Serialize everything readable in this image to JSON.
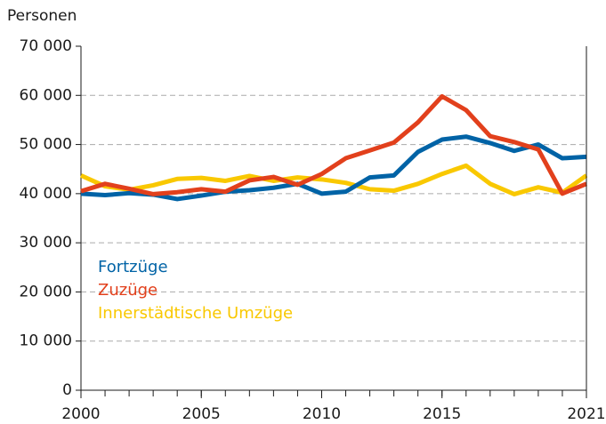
{
  "chart_data": {
    "type": "line",
    "ylabel": "Personen",
    "x": [
      2000,
      2001,
      2002,
      2003,
      2004,
      2005,
      2006,
      2007,
      2008,
      2009,
      2010,
      2011,
      2012,
      2013,
      2014,
      2015,
      2016,
      2017,
      2018,
      2019,
      2020,
      2021
    ],
    "xlim": [
      2000,
      2021
    ],
    "xticks": [
      2000,
      2005,
      2010,
      2015,
      2021
    ],
    "ylim": [
      0,
      70000
    ],
    "yticks": [
      0,
      {
        "value": 10000,
        "label": "10 000"
      },
      {
        "value": 20000,
        "label": "20 000"
      },
      {
        "value": 30000,
        "label": "30 000"
      },
      {
        "value": 40000,
        "label": "40 000"
      },
      {
        "value": 50000,
        "label": "50 000"
      },
      {
        "value": 60000,
        "label": "60 000"
      },
      {
        "value": 70000,
        "label": "70 000"
      }
    ],
    "grid": true,
    "legend": "lower left",
    "series": [
      {
        "name": "Fortzüge",
        "color": "#0063a6",
        "values": [
          40000,
          39700,
          40100,
          39800,
          38900,
          39600,
          40400,
          40700,
          41200,
          42000,
          40000,
          40400,
          43300,
          43700,
          48500,
          51000,
          51600,
          50300,
          48700,
          50000,
          47200,
          47500
        ]
      },
      {
        "name": "Zuzüge",
        "color": "#e2401c",
        "values": [
          40500,
          42000,
          41000,
          39900,
          40300,
          40900,
          40400,
          42700,
          43400,
          41800,
          44000,
          47200,
          48800,
          50400,
          54500,
          59800,
          57000,
          51700,
          50500,
          49000,
          40000,
          42000
        ]
      },
      {
        "name": "Innerstädtische Umzüge",
        "color": "#f9c800",
        "values": [
          43700,
          41500,
          40800,
          41700,
          43000,
          43200,
          42600,
          43600,
          42600,
          43300,
          42900,
          42200,
          40900,
          40600,
          42000,
          44000,
          45700,
          42000,
          39900,
          41300,
          40200,
          43700
        ]
      }
    ]
  }
}
